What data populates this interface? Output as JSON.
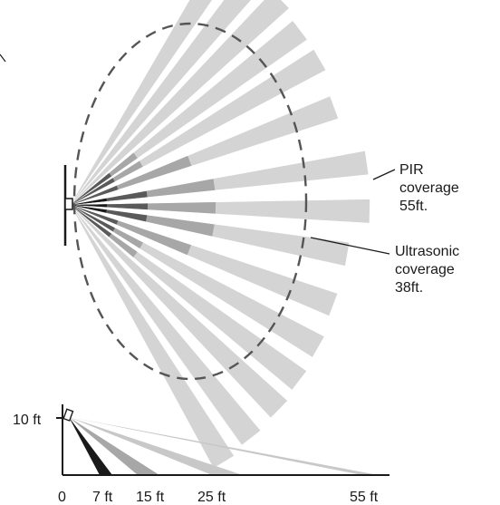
{
  "labels": {
    "pir_line1": "PIR",
    "pir_line2": "coverage",
    "pir_line3": "55ft.",
    "us_line1": "Ultrasonic",
    "us_line2": "coverage",
    "us_line3": "38ft."
  },
  "side_view": {
    "height_label": "10 ft",
    "distance_ticks": [
      "0",
      "7 ft",
      "15 ft",
      "25 ft",
      "55 ft"
    ]
  },
  "colors": {
    "beam_light": "#d4d4d4",
    "beam_mid": "#a7a7a7",
    "beam_dark": "#5a5a5a",
    "beam_black": "#1a1a1a",
    "ultrasonic_dash": "#555555",
    "line": "#1a1a1a"
  }
}
